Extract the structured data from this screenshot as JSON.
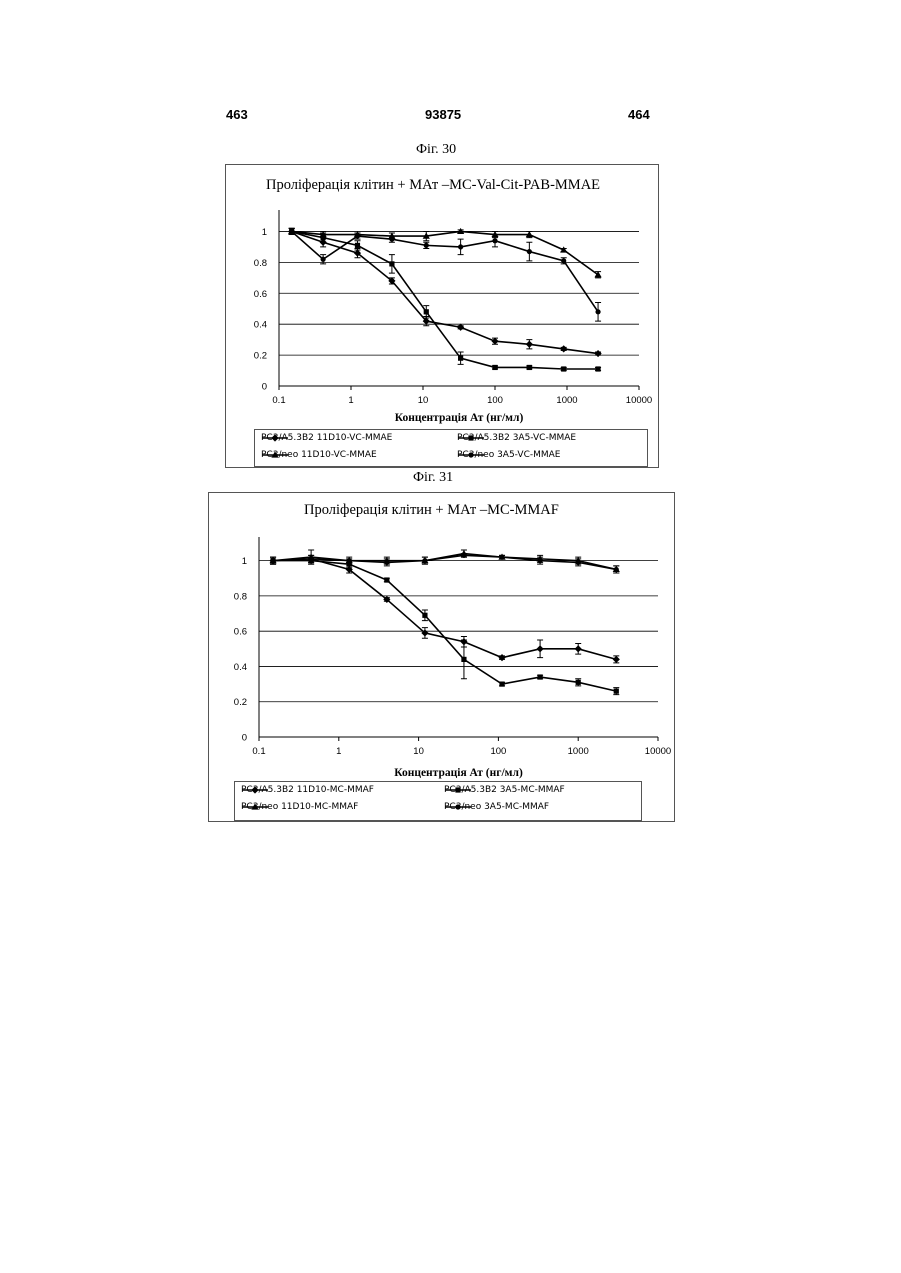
{
  "header": {
    "left": "463",
    "center": "93875",
    "right": "464"
  },
  "fig30_label": "Фіг. 30",
  "fig31_label": "Фіг. 31",
  "chart_data": [
    {
      "type": "line",
      "title": "Проліферація клітин + МАт –MC-Val-Cit-PAB-MMAE",
      "xlabel": "Концентрація Ат (нг/мл)",
      "ylabel": "",
      "x_scale": "log",
      "xlim": [
        0.1,
        10000
      ],
      "ylim": [
        0,
        1.1
      ],
      "x_ticks": [
        "0.1",
        "1",
        "10",
        "100",
        "1000",
        "10000"
      ],
      "y_ticks": [
        "0",
        "0.2",
        "0.4",
        "0.6",
        "0.8",
        "1"
      ],
      "grid": "horizontal",
      "legend_position": "bottom",
      "x": [
        0.15,
        0.41,
        1.23,
        3.7,
        11.1,
        33.3,
        100,
        300,
        900,
        2700
      ],
      "series": [
        {
          "name": "PC3/A5.3B2 11D10-VC-MMAE",
          "marker": "diamond",
          "values": [
            1.0,
            0.93,
            0.86,
            0.68,
            0.42,
            0.38,
            0.29,
            0.27,
            0.24,
            0.21
          ],
          "errors": [
            0.02,
            0.03,
            0.03,
            0.02,
            0.03,
            0.01,
            0.02,
            0.03,
            0.01,
            0.01
          ]
        },
        {
          "name": "PC3/A5.3B2 3A5-VC-MMAE",
          "marker": "square",
          "values": [
            1.0,
            0.96,
            0.91,
            0.79,
            0.48,
            0.18,
            0.12,
            0.12,
            0.11,
            0.11
          ],
          "errors": [
            0.02,
            0.03,
            0.03,
            0.06,
            0.04,
            0.04,
            0.01,
            0.01,
            0.01,
            0.01
          ]
        },
        {
          "name": "PC3/neo 11D10-VC-MMAE",
          "marker": "triangle",
          "values": [
            1.0,
            0.98,
            0.98,
            0.97,
            0.97,
            1.0,
            0.98,
            0.98,
            0.88,
            0.72
          ],
          "errors": [
            0.02,
            0.02,
            0.01,
            0.02,
            0.03,
            0.01,
            0.02,
            0.02,
            0.01,
            0.02
          ]
        },
        {
          "name": "PC3/neo 3A5-VC-MMAE",
          "marker": "circle",
          "values": [
            1.0,
            0.82,
            0.97,
            0.95,
            0.91,
            0.9,
            0.94,
            0.87,
            0.81,
            0.48
          ],
          "errors": [
            0.02,
            0.03,
            0.02,
            0.02,
            0.02,
            0.05,
            0.04,
            0.06,
            0.02,
            0.06
          ]
        }
      ]
    },
    {
      "type": "line",
      "title": "Проліферація клітин + МАт –MC-MMAF",
      "xlabel": "Концентрація Ат (нг/мл)",
      "ylabel": "",
      "x_scale": "log",
      "xlim": [
        0.1,
        10000
      ],
      "ylim": [
        0,
        1.1
      ],
      "x_ticks": [
        "0.1",
        "1",
        "10",
        "100",
        "1000",
        "10000"
      ],
      "y_ticks": [
        "0",
        "0.2",
        "0.4",
        "0.6",
        "0.8",
        "1"
      ],
      "grid": "horizontal",
      "legend_position": "bottom",
      "x": [
        0.15,
        0.45,
        1.35,
        4.0,
        12.0,
        37.0,
        111,
        333,
        1000,
        3000
      ],
      "series": [
        {
          "name": "PC3/A5.3B2 11D10-MC-MMAF",
          "marker": "diamond",
          "values": [
            1.0,
            1.01,
            0.95,
            0.78,
            0.59,
            0.54,
            0.45,
            0.5,
            0.5,
            0.44
          ],
          "errors": [
            0.02,
            0.02,
            0.02,
            0.01,
            0.03,
            0.03,
            0.01,
            0.05,
            0.03,
            0.02
          ]
        },
        {
          "name": "PC3/A5.3B2 3A5-MC-MMAF",
          "marker": "square",
          "values": [
            1.0,
            1.0,
            0.98,
            0.89,
            0.69,
            0.44,
            0.3,
            0.34,
            0.31,
            0.26
          ],
          "errors": [
            0.02,
            0.02,
            0.02,
            0.01,
            0.03,
            0.11,
            0.01,
            0.01,
            0.02,
            0.02
          ]
        },
        {
          "name": "PC3/neo 11D10-MC-MMAF",
          "marker": "triangle",
          "values": [
            1.0,
            1.02,
            1.0,
            1.0,
            1.0,
            1.04,
            1.02,
            1.01,
            1.0,
            0.95
          ],
          "errors": [
            0.02,
            0.04,
            0.02,
            0.02,
            0.02,
            0.02,
            0.01,
            0.02,
            0.02,
            0.02
          ]
        },
        {
          "name": "PC3/neo 3A5-MC-MMAF",
          "marker": "circle",
          "values": [
            1.0,
            1.01,
            1.0,
            0.99,
            1.0,
            1.03,
            1.02,
            1.0,
            0.99,
            0.95
          ],
          "errors": [
            0.02,
            0.02,
            0.01,
            0.02,
            0.02,
            0.01,
            0.01,
            0.02,
            0.02,
            0.02
          ]
        }
      ]
    }
  ]
}
